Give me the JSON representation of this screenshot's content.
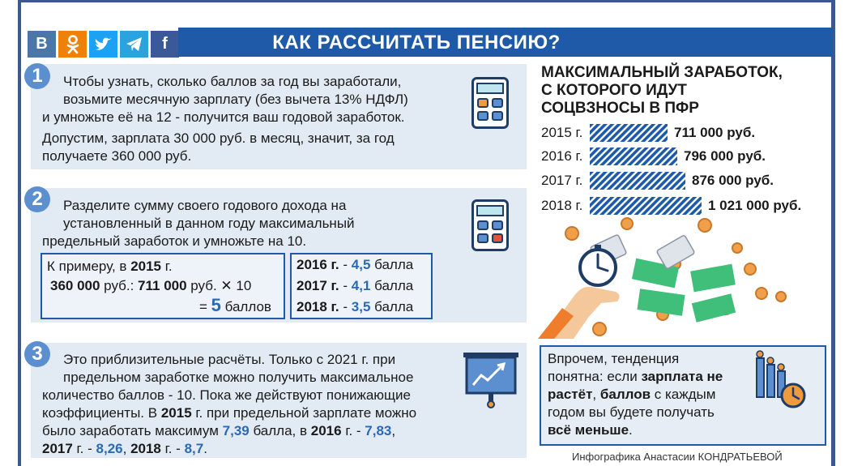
{
  "title": "КАК РАССЧИТАТЬ ПЕНСИЮ?",
  "social": [
    {
      "label": "B",
      "icon": "vk-icon",
      "color": "#4a76a8"
    },
    {
      "label": "ок",
      "icon": "odnoklassniki-icon",
      "color": "#ee8208"
    },
    {
      "label": "",
      "icon": "twitter-icon",
      "color": "#1da1f2"
    },
    {
      "label": "",
      "icon": "telegram-icon",
      "color": "#2aa3de"
    },
    {
      "label": "f",
      "icon": "facebook-icon",
      "color": "#3b5998"
    }
  ],
  "step1": {
    "number": "1",
    "lines": [
      "Чтобы узнать, сколько баллов за год вы заработали,",
      "возьмите месячную зарплату (без вычета 13% НДФЛ)",
      "и умножьте её на 12 - получится ваш годовой заработок.",
      "Допустим, зарплата 30 000 руб. в месяц, значит, за год",
      "получаете 360 000 руб."
    ]
  },
  "step2": {
    "number": "2",
    "lines": [
      "Разделите сумму своего годового дохода на",
      "установленный в данном году максимальный",
      "предельный заработок и умножьте на 10."
    ],
    "example": {
      "prefix": "К примеру, в ",
      "year": "2015",
      "suffix": " г.",
      "calc_a": "360 000",
      "calc_a_unit": " руб.: ",
      "calc_b": "711 000",
      "calc_b_unit": " руб. ✕ 10",
      "eq": "= ",
      "result": "5",
      "result_unit": " баллов"
    },
    "others": [
      {
        "year": "2016 г.",
        "dash": " - ",
        "value": "4,5",
        "unit": " балла"
      },
      {
        "year": "2017 г.",
        "dash": " - ",
        "value": "4,1",
        "unit": " балла"
      },
      {
        "year": "2018 г.",
        "dash": " - ",
        "value": "3,5",
        "unit": " балла"
      }
    ]
  },
  "step3": {
    "number": "3",
    "l1": "Это приблизительные расчёты. Только с 2021 г. при",
    "l2": "предельном заработке можно получить максимальное",
    "l3": "количество баллов - 10. Пока же действуют понижающие",
    "l4a": "коэффициенты. В ",
    "l4b": "2015",
    "l4c": " г. при предельной зарплате можно",
    "l5a": "было заработать максимум ",
    "l5b": "7,39",
    "l5c": " балла, в ",
    "l5d": "2016",
    "l5e": " г. - ",
    "l5f": "7,83",
    "l5g": ",",
    "l6a": "2017",
    "l6b": " г. - ",
    "l6c": "8,26",
    "l6d": ", ",
    "l6e": "2018",
    "l6f": " г. - ",
    "l6g": "8,7",
    "l6h": "."
  },
  "right": {
    "title_lines": [
      "МАКСИМАЛЬНЫЙ ЗАРАБОТОК,",
      "С КОТОРОГО ИДУТ",
      "СОЦВЗНОСЫ В ПФР"
    ]
  },
  "chart_data": {
    "type": "bar",
    "orientation": "horizontal",
    "categories": [
      "2015 г.",
      "2016 г.",
      "2017 г.",
      "2018 г."
    ],
    "values": [
      711000,
      796000,
      876000,
      1021000
    ],
    "value_labels": [
      "711 000 руб.",
      "796 000 руб.",
      "876 000 руб.",
      "1 021 000 руб."
    ],
    "bar_color": "#1e5aa8",
    "xlim": [
      0,
      1021000
    ]
  },
  "info": {
    "t1": "Впрочем, тенденция",
    "t2a": "понятна: если ",
    "t2b": "зарплата не",
    "t3a": "растёт",
    "t3b": ", ",
    "t3c": "баллов",
    "t3d": " с каждым",
    "t4": "годом вы будете получать",
    "t5a": "всё меньше",
    "t5b": "."
  },
  "credit": "Инфографика Анастасии КОНДРАТЬЕВОЙ"
}
